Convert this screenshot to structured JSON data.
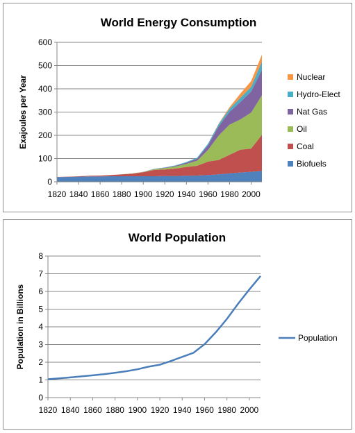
{
  "chart_data": [
    {
      "type": "area",
      "title": "World Energy Consumption",
      "xlabel": "",
      "ylabel": "Exajoules per Year",
      "xlim": [
        1820,
        2010
      ],
      "ylim": [
        0,
        600
      ],
      "yticks": [
        0,
        100,
        200,
        300,
        400,
        500,
        600
      ],
      "xticks": [
        1820,
        1840,
        1860,
        1880,
        1900,
        1920,
        1940,
        1960,
        1980,
        2000
      ],
      "grid": true,
      "legend_position": "right",
      "stacked": true,
      "x": [
        1820,
        1830,
        1840,
        1850,
        1860,
        1870,
        1880,
        1890,
        1900,
        1910,
        1920,
        1930,
        1940,
        1950,
        1960,
        1970,
        1980,
        1990,
        2000,
        2010
      ],
      "series": [
        {
          "name": "Biofuels",
          "color": "#4f81bd",
          "values": [
            20,
            21,
            22,
            23,
            23,
            24,
            24,
            24,
            24,
            24,
            25,
            25,
            26,
            27,
            29,
            32,
            36,
            40,
            43,
            47
          ]
        },
        {
          "name": "Coal",
          "color": "#c0504d",
          "values": [
            1,
            1,
            2,
            3,
            4,
            5,
            8,
            11,
            17,
            27,
            28,
            32,
            38,
            42,
            58,
            62,
            80,
            98,
            100,
            155
          ]
        },
        {
          "name": "Oil",
          "color": "#9bbb59",
          "values": [
            0,
            0,
            0,
            0,
            0,
            0,
            0,
            1,
            1,
            3,
            6,
            9,
            13,
            22,
            50,
            105,
            130,
            130,
            155,
            170
          ]
        },
        {
          "name": "Nat Gas",
          "color": "#8064a2",
          "values": [
            0,
            0,
            0,
            0,
            0,
            0,
            0,
            0,
            1,
            1,
            2,
            3,
            5,
            9,
            20,
            40,
            55,
            75,
            90,
            110
          ]
        },
        {
          "name": "Hydro-Elect",
          "color": "#4bacc6",
          "values": [
            0,
            0,
            0,
            0,
            0,
            0,
            0,
            0,
            0,
            1,
            1,
            2,
            3,
            4,
            7,
            10,
            13,
            18,
            20,
            35
          ]
        },
        {
          "name": "Nuclear",
          "color": "#f79646",
          "values": [
            0,
            0,
            0,
            0,
            0,
            0,
            0,
            0,
            0,
            0,
            0,
            0,
            0,
            0,
            0,
            2,
            7,
            18,
            25,
            30
          ]
        }
      ]
    },
    {
      "type": "line",
      "title": "World Population",
      "xlabel": "",
      "ylabel": "Population in Billions",
      "xlim": [
        1820,
        2010
      ],
      "ylim": [
        0,
        8
      ],
      "yticks": [
        0,
        1,
        2,
        3,
        4,
        5,
        6,
        7,
        8
      ],
      "xticks": [
        1820,
        1840,
        1860,
        1880,
        1900,
        1920,
        1940,
        1960,
        1980,
        2000
      ],
      "grid": true,
      "legend_position": "right",
      "series": [
        {
          "name": "Population",
          "color": "#4a7ebb",
          "x": [
            1820,
            1830,
            1840,
            1850,
            1860,
            1870,
            1880,
            1890,
            1900,
            1910,
            1920,
            1930,
            1940,
            1950,
            1960,
            1970,
            1980,
            1990,
            2000,
            2010
          ],
          "values": [
            1.04,
            1.09,
            1.14,
            1.2,
            1.26,
            1.32,
            1.4,
            1.49,
            1.6,
            1.75,
            1.86,
            2.07,
            2.3,
            2.53,
            3.02,
            3.69,
            4.45,
            5.31,
            6.11,
            6.87
          ]
        }
      ]
    }
  ]
}
